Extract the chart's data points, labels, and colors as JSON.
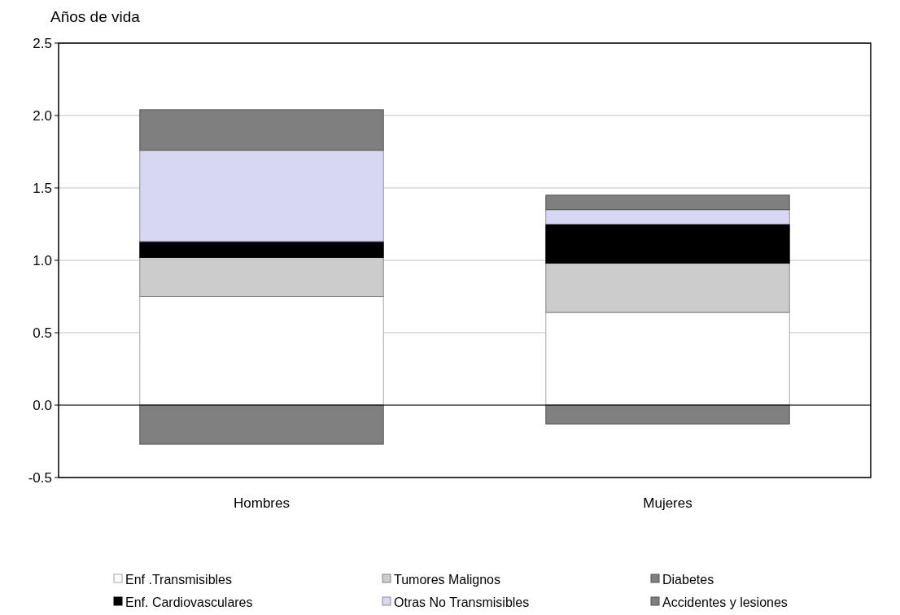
{
  "chart_data": {
    "type": "bar",
    "stacked": true,
    "ylabel": "Años de vida",
    "categories": [
      "Hombres",
      "Mujeres"
    ],
    "series": [
      {
        "name": "Enf .Transmisibles",
        "color": "#ffffff",
        "values": [
          0.75,
          0.64
        ]
      },
      {
        "name": "Tumores Malignos",
        "color": "#cccccc",
        "values": [
          0.27,
          0.34
        ]
      },
      {
        "name": "Diabetes",
        "color": "#808080",
        "values": [
          -0.27,
          -0.13
        ]
      },
      {
        "name": "Enf. Cardiovasculares",
        "color": "#000000",
        "values": [
          0.11,
          0.27
        ]
      },
      {
        "name": "Otras No Transmisibles",
        "color": "#d7d7f3",
        "values": [
          0.63,
          0.1
        ]
      },
      {
        "name": "Accidentes y lesiones",
        "color": "#7f7f7f",
        "values": [
          0.28,
          0.1
        ]
      }
    ],
    "ylim": [
      -0.5,
      2.5
    ],
    "yticks": [
      {
        "value": -0.5,
        "label": "-0.5"
      },
      {
        "value": 0,
        "label": "0.0"
      },
      {
        "value": 0.5,
        "label": "0.5"
      },
      {
        "value": 1,
        "label": "1.0"
      },
      {
        "value": 1.5,
        "label": "1.5"
      },
      {
        "value": 2,
        "label": "2.0"
      },
      {
        "value": 2.5,
        "label": "2.5"
      }
    ],
    "grid": "y",
    "legend": "bottom"
  }
}
